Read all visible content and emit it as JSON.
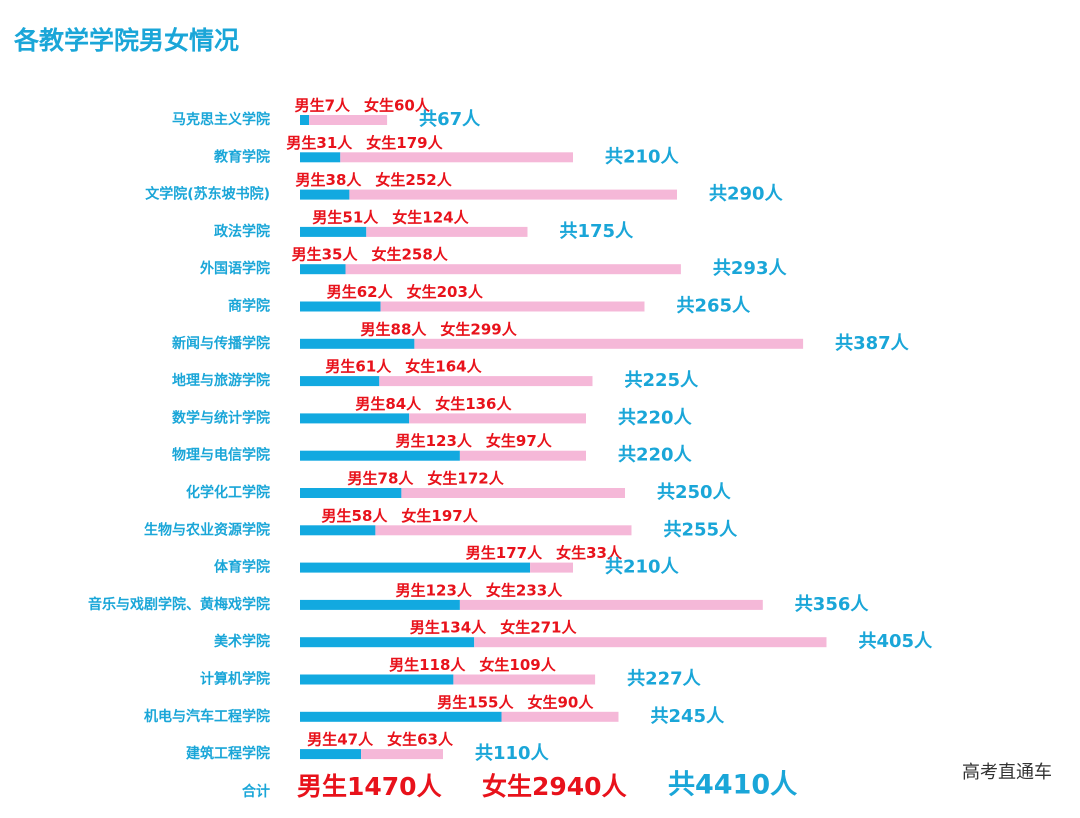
{
  "chart_data": {
    "type": "stacked-barh",
    "title": "各教学学院男女情况",
    "categories": [
      "马克思主义学院",
      "教育学院",
      "文学院(苏东坡书院)",
      "政法学院",
      "外国语学院",
      "商学院",
      "新闻与传播学院",
      "地理与旅游学院",
      "数学与统计学院",
      "物理与电信学院",
      "化学化工学院",
      "生物与农业资源学院",
      "体育学院",
      "音乐与戏剧学院、黄梅戏学院",
      "美术学院",
      "计算机学院",
      "机电与汽车工程学院",
      "建筑工程学院"
    ],
    "series": [
      {
        "name": "男生",
        "color": "#12a9e0",
        "values": [
          7,
          31,
          38,
          51,
          35,
          62,
          88,
          61,
          84,
          123,
          78,
          58,
          177,
          123,
          134,
          118,
          155,
          47
        ],
        "value_labels": [
          "男生7人",
          "男生31人",
          "男生38人",
          "男生51人",
          "男生35人",
          "男生62人",
          "男生88人",
          "男生61人",
          "男生84人",
          "男生123人",
          "男生78人",
          "男生58人",
          "男生177人",
          "男生123人",
          "男生134人",
          "男生118人",
          "男生155人",
          "男生47人"
        ]
      },
      {
        "name": "女生",
        "color": "#f5b8d8",
        "values": [
          60,
          179,
          252,
          124,
          258,
          203,
          299,
          164,
          136,
          97,
          172,
          197,
          33,
          233,
          271,
          109,
          90,
          63
        ],
        "value_labels": [
          "女生60人",
          "女生179人",
          "女生252人",
          "女生124人",
          "女生258人",
          "女生203人",
          "女生299人",
          "女生164人",
          "女生136人",
          "女生97人",
          "女生172人",
          "女生197人",
          "女生33人",
          "女生233人",
          "女生271人",
          "女生109人",
          "女生90人",
          "女生63人"
        ]
      }
    ],
    "totals": {
      "values": [
        67,
        210,
        290,
        175,
        293,
        265,
        387,
        225,
        220,
        220,
        250,
        255,
        210,
        356,
        405,
        227,
        245,
        110
      ],
      "value_labels": [
        "共67人",
        "共210人",
        "共290人",
        "共175人",
        "共293人",
        "共265人",
        "共387人",
        "共225人",
        "共220人",
        "共220人",
        "共250人",
        "共255人",
        "共210人",
        "共356人",
        "共405人",
        "共227人",
        "共245人",
        "共110人"
      ]
    },
    "summary": {
      "label": "合计",
      "items": [
        "男生1470人",
        "女生2940人",
        "共4410人"
      ]
    },
    "watermark": "高考直通车"
  }
}
